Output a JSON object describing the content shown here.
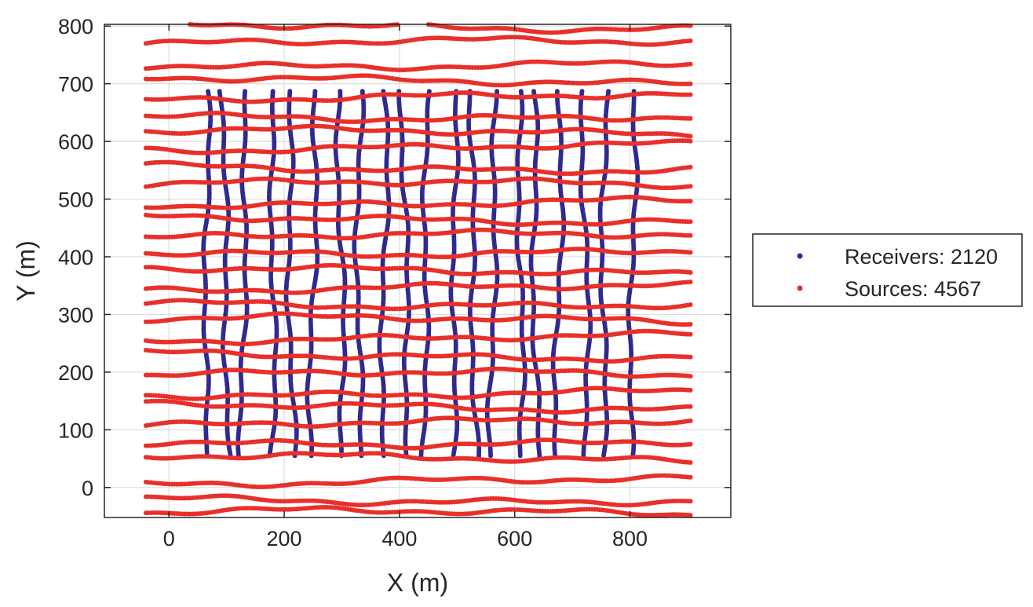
{
  "chart_data": {
    "type": "scatter",
    "title": "",
    "xlabel": "X (m)",
    "ylabel": "Y (m)",
    "xlim": [
      -112,
      975
    ],
    "ylim": [
      -52,
      803
    ],
    "xticks": [
      0,
      200,
      400,
      600,
      800
    ],
    "yticks": [
      0,
      100,
      200,
      300,
      400,
      500,
      600,
      700,
      800
    ],
    "grid": true,
    "legend_position": "right",
    "series": [
      {
        "name": "Receivers: 2120",
        "color": "#2e2a8f",
        "layout": "north-south receiver lines",
        "line_x": [
          60,
          100,
          133,
          175,
          215,
          250,
          295,
          335,
          370,
          410,
          450,
          490,
          530,
          565,
          605,
          640,
          675,
          720,
          760,
          800
        ],
        "y_range": [
          55,
          690
        ]
      },
      {
        "name": "Sources: 4567",
        "color": "#e8302a",
        "layout": "east-west source lines",
        "line_y": [
          -45,
          -20,
          10,
          50,
          80,
          110,
          140,
          165,
          195,
          230,
          260,
          290,
          320,
          345,
          375,
          410,
          435,
          465,
          495,
          525,
          555,
          590,
          615,
          645,
          675,
          705,
          735,
          770,
          800
        ],
        "x_range": [
          -40,
          905
        ]
      }
    ]
  }
}
